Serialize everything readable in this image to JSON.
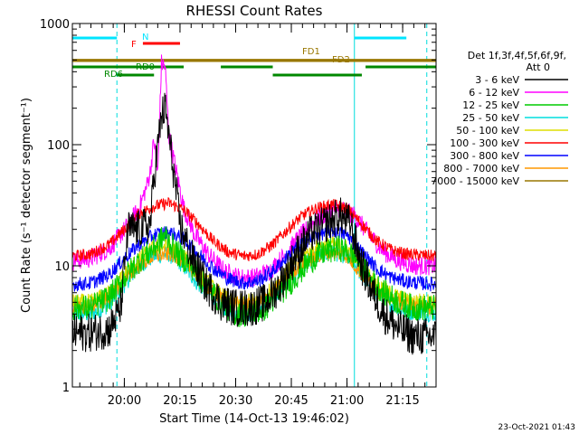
{
  "chart_data": {
    "type": "line",
    "title": "RHESSI Count Rates",
    "xlabel": "Start Time (14-Oct-13 19:46:02)",
    "ylabel": "Count Rate (s⁻¹ detector segment⁻¹)",
    "yscale": "log",
    "ylim": [
      1,
      1000
    ],
    "xlim_minutes": [
      0,
      98
    ],
    "y_ticks": [
      "1",
      "10",
      "100",
      "1000"
    ],
    "x_ticks": [
      {
        "label": "20:00",
        "minute": 14
      },
      {
        "label": "20:15",
        "minute": 29
      },
      {
        "label": "20:30",
        "minute": 44
      },
      {
        "label": "20:45",
        "minute": 59
      },
      {
        "label": "21:00",
        "minute": 74
      },
      {
        "label": "21:15",
        "minute": 89
      }
    ],
    "legend": {
      "header": [
        "Det 1f,3f,4f,5f,6f,9f,",
        "Att 0"
      ],
      "placement": "right"
    },
    "series": [
      {
        "name": "3 - 6 keV",
        "color": "#000000",
        "points": [
          [
            0,
            2.8
          ],
          [
            5,
            2.8
          ],
          [
            10,
            3.0
          ],
          [
            13,
            4.5
          ],
          [
            15,
            20
          ],
          [
            18,
            20
          ],
          [
            21,
            22
          ],
          [
            22,
            55
          ],
          [
            24,
            170
          ],
          [
            25,
            200
          ],
          [
            27,
            70
          ],
          [
            29,
            22
          ],
          [
            32,
            12
          ],
          [
            36,
            7
          ],
          [
            40,
            5
          ],
          [
            44,
            4.5
          ],
          [
            48,
            4.5
          ],
          [
            52,
            5
          ],
          [
            56,
            7
          ],
          [
            60,
            12
          ],
          [
            64,
            18
          ],
          [
            68,
            22
          ],
          [
            72,
            26
          ],
          [
            75,
            22
          ],
          [
            78,
            10
          ],
          [
            81,
            6
          ],
          [
            84,
            4
          ],
          [
            88,
            3
          ],
          [
            92,
            2.6
          ],
          [
            98,
            2.6
          ]
        ]
      },
      {
        "name": "6 - 12 keV",
        "color": "#ff00ff",
        "points": [
          [
            0,
            11
          ],
          [
            5,
            11.5
          ],
          [
            10,
            14
          ],
          [
            13,
            18
          ],
          [
            16,
            24
          ],
          [
            18,
            30
          ],
          [
            20,
            45
          ],
          [
            21,
            60
          ],
          [
            22,
            110
          ],
          [
            23,
            55
          ],
          [
            24,
            470
          ],
          [
            25,
            440
          ],
          [
            26,
            120
          ],
          [
            28,
            60
          ],
          [
            30,
            30
          ],
          [
            33,
            18
          ],
          [
            37,
            12
          ],
          [
            41,
            9
          ],
          [
            45,
            8
          ],
          [
            49,
            8
          ],
          [
            53,
            9
          ],
          [
            57,
            12
          ],
          [
            61,
            17
          ],
          [
            65,
            23
          ],
          [
            69,
            28
          ],
          [
            72,
            30
          ],
          [
            76,
            26
          ],
          [
            80,
            18
          ],
          [
            84,
            13
          ],
          [
            88,
            11
          ],
          [
            92,
            10
          ],
          [
            98,
            10
          ]
        ]
      },
      {
        "name": "12 - 25 keV",
        "color": "#00cc00",
        "points": [
          [
            0,
            4.5
          ],
          [
            5,
            4.5
          ],
          [
            10,
            5.5
          ],
          [
            14,
            8
          ],
          [
            18,
            11
          ],
          [
            22,
            14
          ],
          [
            25,
            18
          ],
          [
            28,
            13
          ],
          [
            32,
            10
          ],
          [
            36,
            7
          ],
          [
            40,
            5
          ],
          [
            44,
            4
          ],
          [
            48,
            4
          ],
          [
            52,
            4.5
          ],
          [
            56,
            6
          ],
          [
            60,
            8
          ],
          [
            64,
            11
          ],
          [
            68,
            13
          ],
          [
            72,
            14
          ],
          [
            76,
            12
          ],
          [
            80,
            8
          ],
          [
            84,
            6
          ],
          [
            88,
            5
          ],
          [
            92,
            4.5
          ],
          [
            98,
            4.5
          ]
        ]
      },
      {
        "name": "25 - 50 keV",
        "color": "#00dddd",
        "points": [
          [
            0,
            4.0
          ],
          [
            5,
            4.0
          ],
          [
            10,
            4.8
          ],
          [
            14,
            7
          ],
          [
            18,
            10
          ],
          [
            22,
            12
          ],
          [
            26,
            12.5
          ],
          [
            30,
            10
          ],
          [
            34,
            7
          ],
          [
            38,
            5.5
          ],
          [
            42,
            4.2
          ],
          [
            46,
            4
          ],
          [
            50,
            4.2
          ],
          [
            54,
            5.5
          ],
          [
            58,
            7.5
          ],
          [
            62,
            10
          ],
          [
            66,
            12
          ],
          [
            70,
            13
          ],
          [
            74,
            12
          ],
          [
            78,
            8.5
          ],
          [
            82,
            6
          ],
          [
            86,
            4.8
          ],
          [
            90,
            4.2
          ],
          [
            98,
            4.0
          ]
        ]
      },
      {
        "name": "50 - 100 keV",
        "color": "#dddd00",
        "points": [
          [
            0,
            5.0
          ],
          [
            5,
            5.0
          ],
          [
            10,
            6
          ],
          [
            14,
            8.5
          ],
          [
            18,
            11.5
          ],
          [
            22,
            14
          ],
          [
            26,
            14.5
          ],
          [
            30,
            12
          ],
          [
            34,
            8.5
          ],
          [
            38,
            6.5
          ],
          [
            42,
            5.2
          ],
          [
            46,
            5
          ],
          [
            50,
            5.2
          ],
          [
            54,
            6.5
          ],
          [
            58,
            9
          ],
          [
            62,
            12
          ],
          [
            66,
            14
          ],
          [
            70,
            15
          ],
          [
            74,
            14
          ],
          [
            78,
            10
          ],
          [
            82,
            7
          ],
          [
            86,
            5.8
          ],
          [
            90,
            5.2
          ],
          [
            98,
            5.0
          ]
        ]
      },
      {
        "name": "100 - 300 keV",
        "color": "#ff0000",
        "points": [
          [
            0,
            12
          ],
          [
            5,
            12.5
          ],
          [
            10,
            15
          ],
          [
            14,
            20
          ],
          [
            18,
            27
          ],
          [
            22,
            31
          ],
          [
            26,
            33
          ],
          [
            30,
            29
          ],
          [
            34,
            22
          ],
          [
            38,
            16
          ],
          [
            42,
            13
          ],
          [
            46,
            12
          ],
          [
            50,
            12.5
          ],
          [
            54,
            15
          ],
          [
            58,
            20
          ],
          [
            62,
            26
          ],
          [
            66,
            30
          ],
          [
            70,
            32
          ],
          [
            74,
            30
          ],
          [
            78,
            22
          ],
          [
            82,
            16
          ],
          [
            86,
            13.5
          ],
          [
            90,
            12.5
          ],
          [
            98,
            12
          ]
        ]
      },
      {
        "name": "300 - 800 keV",
        "color": "#0000ff",
        "points": [
          [
            0,
            7.0
          ],
          [
            5,
            7.2
          ],
          [
            10,
            8.5
          ],
          [
            14,
            11.5
          ],
          [
            18,
            15
          ],
          [
            22,
            18
          ],
          [
            26,
            19
          ],
          [
            30,
            16.5
          ],
          [
            34,
            12.5
          ],
          [
            38,
            9.5
          ],
          [
            42,
            7.8
          ],
          [
            46,
            7.2
          ],
          [
            50,
            7.5
          ],
          [
            54,
            9
          ],
          [
            58,
            12
          ],
          [
            62,
            15.5
          ],
          [
            66,
            18
          ],
          [
            70,
            19.5
          ],
          [
            74,
            18
          ],
          [
            78,
            13
          ],
          [
            82,
            9.5
          ],
          [
            86,
            8
          ],
          [
            90,
            7.4
          ],
          [
            98,
            7.0
          ]
        ]
      },
      {
        "name": "800 - 7000 keV",
        "color": "#ff9900",
        "points": [
          [
            0,
            4.5
          ],
          [
            5,
            4.6
          ],
          [
            10,
            5.5
          ],
          [
            14,
            7.5
          ],
          [
            18,
            10
          ],
          [
            22,
            12
          ],
          [
            26,
            12.5
          ],
          [
            30,
            11
          ],
          [
            34,
            8
          ],
          [
            38,
            6
          ],
          [
            42,
            5
          ],
          [
            46,
            4.7
          ],
          [
            50,
            4.9
          ],
          [
            54,
            6
          ],
          [
            58,
            8
          ],
          [
            62,
            10.5
          ],
          [
            66,
            12
          ],
          [
            70,
            13
          ],
          [
            74,
            12
          ],
          [
            78,
            8.5
          ],
          [
            82,
            6.2
          ],
          [
            86,
            5.2
          ],
          [
            90,
            4.8
          ],
          [
            98,
            4.5
          ]
        ]
      },
      {
        "name": "7000 - 15000 keV",
        "color": "#997700",
        "points": [
          [
            0,
            500
          ],
          [
            98,
            500
          ]
        ]
      }
    ],
    "annotations": [
      {
        "text": "N",
        "color": "#00e5ff",
        "bars": [
          [
            0,
            12
          ],
          [
            76,
            90
          ]
        ]
      },
      {
        "text": "F",
        "color": "#ff0000",
        "bars": [
          [
            19,
            29
          ]
        ]
      },
      {
        "text": "FD1",
        "color": "#997700",
        "bars": [
          [
            0,
            98
          ]
        ]
      },
      {
        "text": "FD2",
        "color": "#997700",
        "bars": []
      },
      {
        "text": "RD0",
        "color": "#008800",
        "bars": [
          [
            0,
            30
          ],
          [
            40,
            54
          ],
          [
            79,
            98
          ]
        ]
      },
      {
        "text": "RD6",
        "color": "#008800",
        "bars": [
          [
            12,
            22
          ],
          [
            54,
            78
          ]
        ]
      }
    ],
    "vertical_lines": [
      {
        "minute": 0,
        "style": "solid",
        "color": "#00dddd"
      },
      {
        "minute": 12,
        "style": "dashed",
        "color": "#00dddd"
      },
      {
        "minute": 76,
        "style": "solid",
        "color": "#00dddd"
      },
      {
        "minute": 95.5,
        "style": "dashed",
        "color": "#00dddd"
      }
    ]
  },
  "footer": {
    "timestamp": "23-Oct-2021 01:43"
  }
}
